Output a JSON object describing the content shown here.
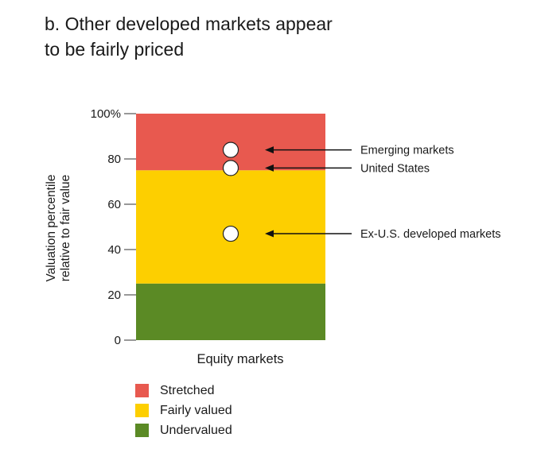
{
  "title_lines": [
    "b. Other developed markets appear",
    "to be fairly priced"
  ],
  "chart_data": {
    "type": "scatter",
    "title": "b. Other developed markets appear to be fairly priced",
    "xlabel": "Equity markets",
    "ylabel": [
      "Valuation percentile",
      "relative to fair value"
    ],
    "ylim": [
      0,
      100
    ],
    "yticks": [
      0,
      20,
      40,
      60,
      80,
      100
    ],
    "ytick_labels": [
      "0",
      "20",
      "40",
      "60",
      "80",
      "100%"
    ],
    "bands": [
      {
        "name": "Undervalued",
        "from": 0,
        "to": 25,
        "color": "#5b8a25"
      },
      {
        "name": "Fairly valued",
        "from": 25,
        "to": 75,
        "color": "#fdcf00"
      },
      {
        "name": "Stretched",
        "from": 75,
        "to": 100,
        "color": "#e8594f"
      }
    ],
    "points": [
      {
        "label": "Emerging markets",
        "value": 84
      },
      {
        "label": "United States",
        "value": 76
      },
      {
        "label": "Ex-U.S. developed markets",
        "value": 47
      }
    ],
    "legend": [
      "Stretched",
      "Fairly valued",
      "Undervalued"
    ]
  }
}
